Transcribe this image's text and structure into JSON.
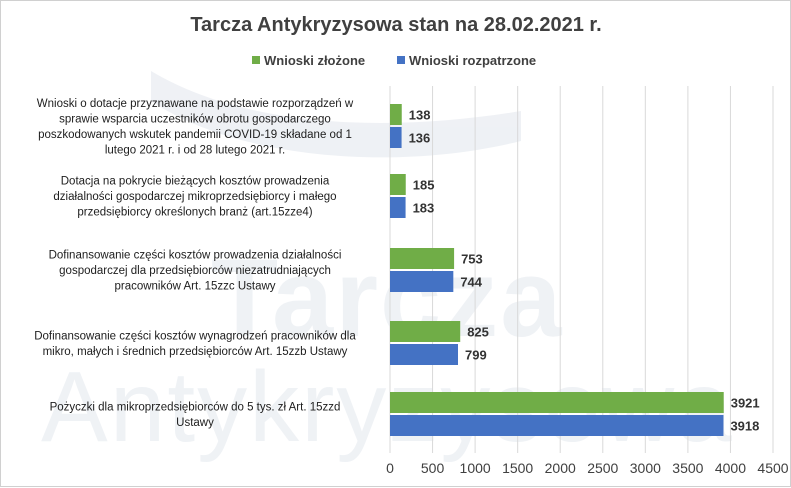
{
  "chart_data": {
    "type": "bar",
    "orientation": "horizontal",
    "title": "Tarcza Antykryzysowa stan na 28.02.2021 r.",
    "categories": [
      "Wnioski o dotacje przyznawane na podstawie rozporządzeń w sprawie wsparcia uczestników obrotu gospodarczego poszkodowanych wskutek pandemii COVID-19 składane od 1 lutego 2021 r. i od 28 lutego 2021 r.",
      "Dotacja na pokrycie bieżących kosztów prowadzenia działalności gospodarczej mikroprzedsiębiorcy i małego przedsiębiorcy określonych branż (art.15zze4)",
      "Dofinansowanie części kosztów prowadzenia działalności gospodarczej dla przedsiębiorców niezatrudniających pracowników Art. 15zzc Ustawy",
      "Dofinansowanie części kosztów wynagrodzeń pracowników dla mikro, małych i średnich przedsiębiorców Art. 15zzb Ustawy",
      "Pożyczki dla mikroprzedsiębiorców do 5 tys. zł Art. 15zzd Ustawy"
    ],
    "category_lines": [
      [
        "Wnioski o dotacje przyznawane na podstawie rozporządzeń w",
        "sprawie wsparcia uczestników obrotu gospodarczego",
        "poszkodowanych wskutek pandemii COVID-19 składane od 1",
        "lutego 2021 r. i od 28 lutego 2021 r."
      ],
      [
        "Dotacja na pokrycie bieżących kosztów prowadzenia",
        "działalności gospodarczej mikroprzedsiębiorcy i małego",
        "przedsiębiorcy określonych branż (art.15zze4)"
      ],
      [
        "Dofinansowanie części kosztów prowadzenia działalności",
        "gospodarczej dla przedsiębiorców niezatrudniających",
        "pracowników Art. 15zzc Ustawy"
      ],
      [
        "Dofinansowanie części kosztów wynagrodzeń pracowników dla",
        "mikro, małych i średnich przedsiębiorców Art. 15zzb Ustawy"
      ],
      [
        "Pożyczki dla mikroprzedsiębiorców do 5 tys. zł Art. 15zzd",
        "Ustawy"
      ]
    ],
    "series": [
      {
        "name": "Wnioski złożone",
        "color": "#70ad47",
        "values": [
          138,
          185,
          753,
          825,
          3921
        ]
      },
      {
        "name": "Wnioski rozpatrzone",
        "color": "#4472c4",
        "values": [
          136,
          183,
          744,
          799,
          3918
        ]
      }
    ],
    "x_ticks": [
      0,
      500,
      1000,
      1500,
      2000,
      2500,
      3000,
      3500,
      4000,
      4500
    ],
    "xlim": [
      0,
      4500
    ],
    "grid": true,
    "legend_position": "top"
  }
}
